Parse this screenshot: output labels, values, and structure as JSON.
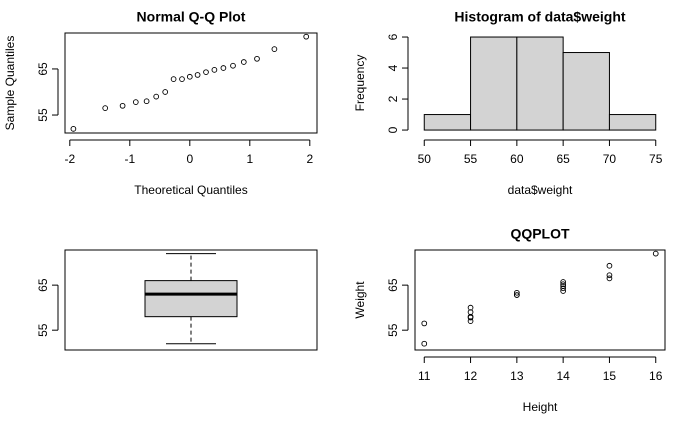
{
  "chart_data": [
    {
      "type": "scatter",
      "title": "Normal Q-Q Plot",
      "xlabel": "Theoretical Quantiles",
      "ylabel": "Sample Quantiles",
      "x": [
        -1.94,
        -1.41,
        -1.12,
        -0.9,
        -0.72,
        -0.56,
        -0.41,
        -0.27,
        -0.13,
        0,
        0.13,
        0.27,
        0.41,
        0.56,
        0.72,
        0.9,
        1.12,
        1.41,
        1.94
      ],
      "values": [
        52,
        56.5,
        57,
        57.8,
        58,
        59,
        60,
        62.8,
        62.8,
        63.3,
        63.7,
        64.3,
        64.8,
        65.2,
        65.7,
        66.5,
        67.2,
        69.3,
        72
      ],
      "xlim": [
        -2.08,
        2.12
      ],
      "xticks": [
        -2,
        -1,
        0,
        1,
        2
      ],
      "ylim": [
        51.1,
        72.8
      ],
      "yticks": [
        55,
        65
      ],
      "frame": true
    },
    {
      "type": "histogram",
      "title": "Histogram of data$weight",
      "xlabel": "data$weight",
      "ylabel": "Frequency",
      "bins": [
        50,
        55,
        60,
        65,
        70,
        75
      ],
      "values": [
        1,
        6,
        6,
        5,
        1
      ],
      "color": "#d3d3d3",
      "xlim": [
        49,
        76
      ],
      "xticks": [
        50,
        55,
        60,
        65,
        70,
        75
      ],
      "ylim": [
        -0.19,
        6.26
      ],
      "yticks": [
        0,
        2,
        4,
        6
      ],
      "frame": false
    },
    {
      "type": "box",
      "values": {
        "min": 52,
        "q1": 58,
        "median": 63,
        "q3": 66,
        "max": 72
      },
      "color": "#d3d3d3",
      "ylim": [
        50.6,
        72.8
      ],
      "yticks": [
        55,
        65
      ],
      "frame": true
    },
    {
      "type": "scatter",
      "title": "QQPLOT",
      "xlabel": "Height",
      "ylabel": "Weight",
      "x": [
        11,
        11,
        12,
        12,
        12,
        12,
        12,
        13,
        13,
        13,
        14,
        14,
        14,
        14,
        14,
        15,
        15,
        15,
        16
      ],
      "values": [
        52,
        56.5,
        57,
        57.8,
        58,
        59,
        60,
        62.8,
        62.8,
        63.3,
        63.7,
        64.3,
        64.8,
        65.2,
        65.7,
        66.5,
        67.2,
        69.3,
        72
      ],
      "xlim": [
        10.8,
        16.2
      ],
      "xticks": [
        11,
        12,
        13,
        14,
        15,
        16
      ],
      "ylim": [
        50.6,
        72.8
      ],
      "yticks": [
        55,
        65
      ],
      "frame": true
    }
  ]
}
